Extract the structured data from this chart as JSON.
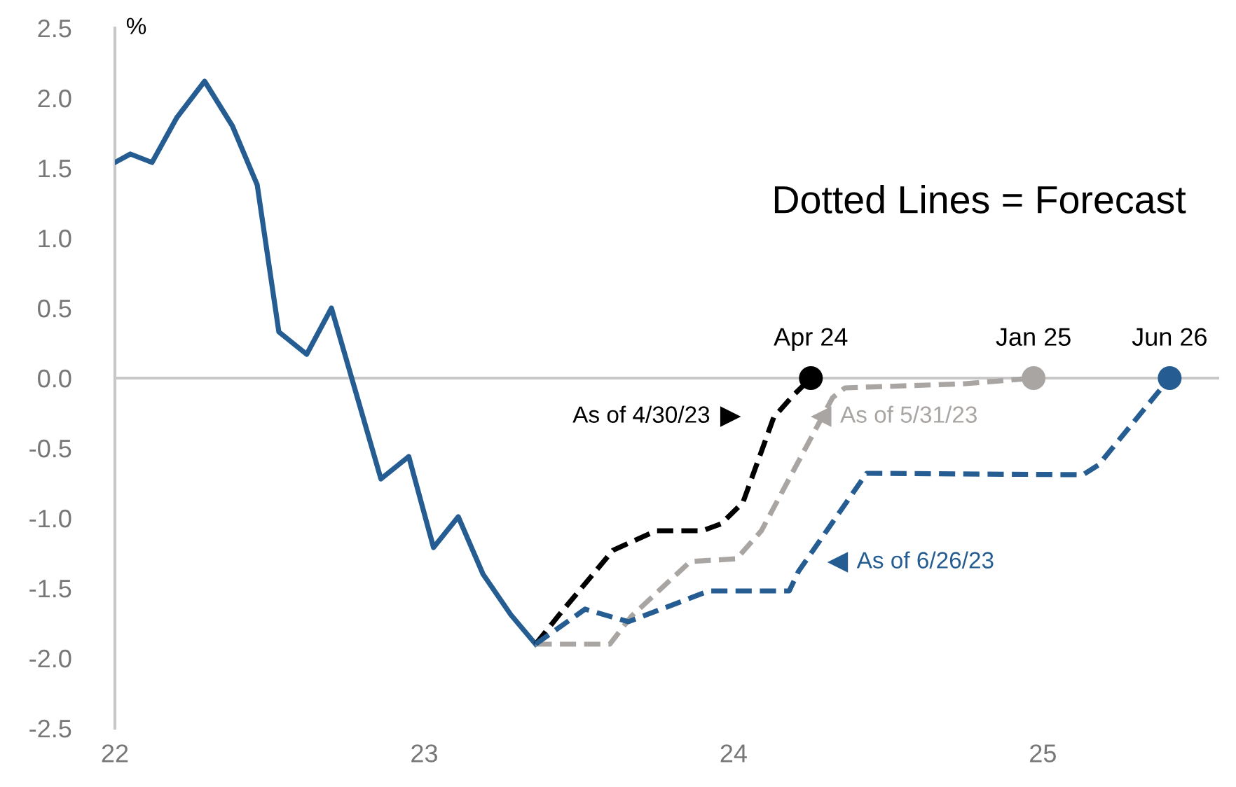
{
  "chart_data": {
    "type": "line",
    "ylabel": "%",
    "xlim": [
      2022,
      2025.57
    ],
    "xticks": [
      {
        "value": 2022,
        "label": "22"
      },
      {
        "value": 2023,
        "label": "23"
      },
      {
        "value": 2024,
        "label": "24"
      },
      {
        "value": 2025,
        "label": "25"
      }
    ],
    "ylim": [
      -2.5,
      2.5
    ],
    "yticks": [
      {
        "value": 2.5,
        "label": "2.5"
      },
      {
        "value": 2,
        "label": "2.0"
      },
      {
        "value": 1.5,
        "label": "1.5"
      },
      {
        "value": 1,
        "label": "1.0"
      },
      {
        "value": 0.5,
        "label": "0.5"
      },
      {
        "value": 0,
        "label": "0.0"
      },
      {
        "value": -0.5,
        "label": "-0.5"
      },
      {
        "value": -1,
        "label": "-1.0"
      },
      {
        "value": -1.5,
        "label": "-1.5"
      },
      {
        "value": -2,
        "label": "-2.0"
      },
      {
        "value": -2.5,
        "label": "-2.5"
      }
    ],
    "grid": false,
    "legend": "center right",
    "ref_lines": [
      {
        "axis": "y",
        "value": 0,
        "color": "#c8c8c8"
      }
    ],
    "series": [
      {
        "color": "#255d92",
        "line_style": "solid",
        "x": [
          2022.0,
          2022.05,
          2022.12,
          2022.2,
          2022.29,
          2022.38,
          2022.46,
          2022.53,
          2022.62,
          2022.7,
          2022.86,
          2022.95,
          2023.03,
          2023.11,
          2023.19,
          2023.28,
          2023.36
        ],
        "values": [
          1.54,
          1.6,
          1.54,
          1.86,
          2.12,
          1.8,
          1.38,
          0.33,
          0.17,
          0.5,
          -0.72,
          -0.56,
          -1.21,
          -0.99,
          -1.4,
          -1.69,
          -1.9
        ]
      },
      {
        "name": "As of 4/30/23",
        "color": "#000000",
        "line_style": "dashed",
        "x": [
          2023.36,
          2023.44,
          2023.61,
          2023.75,
          2023.9,
          2023.96,
          2024.03,
          2024.13,
          2024.19,
          2024.25
        ],
        "values": [
          -1.9,
          -1.68,
          -1.23,
          -1.09,
          -1.09,
          -1.04,
          -0.89,
          -0.28,
          -0.13,
          0
        ]
      },
      {
        "name": "As of 5/31/23",
        "color": "#a8a5a3",
        "line_style": "dashed",
        "x": [
          2023.36,
          2023.6,
          2023.67,
          2023.86,
          2024.01,
          2024.09,
          2024.32,
          2024.36,
          2024.75,
          2024.97
        ],
        "values": [
          -1.9,
          -1.9,
          -1.7,
          -1.31,
          -1.29,
          -1.09,
          -0.14,
          -0.07,
          -0.04,
          0
        ]
      },
      {
        "name": "As of 6/26/23",
        "color": "#255d92",
        "line_style": "dashed",
        "x": [
          2023.36,
          2023.52,
          2023.66,
          2023.92,
          2024.18,
          2024.21,
          2024.43,
          2025.13,
          2025.18,
          2025.41
        ],
        "values": [
          -1.9,
          -1.65,
          -1.74,
          -1.52,
          -1.52,
          -1.38,
          -0.68,
          -0.69,
          -0.62,
          0
        ]
      },
      {
        "type": "scatter",
        "marker": "circle",
        "x": [
          2024.25,
          2024.97,
          2025.41
        ],
        "values": [
          0,
          0,
          0
        ],
        "colors": [
          "#000000",
          "#a8a5a3",
          "#255d92"
        ]
      }
    ],
    "annotations": [
      {
        "text": "Apr 24",
        "x": 2024.25,
        "y": 0
      },
      {
        "text": "Jan 25",
        "x": 2024.97,
        "y": 0
      },
      {
        "text": "Jun 26",
        "x": 2025.41,
        "y": 0
      },
      "Dotted Lines = Forecast"
    ]
  }
}
